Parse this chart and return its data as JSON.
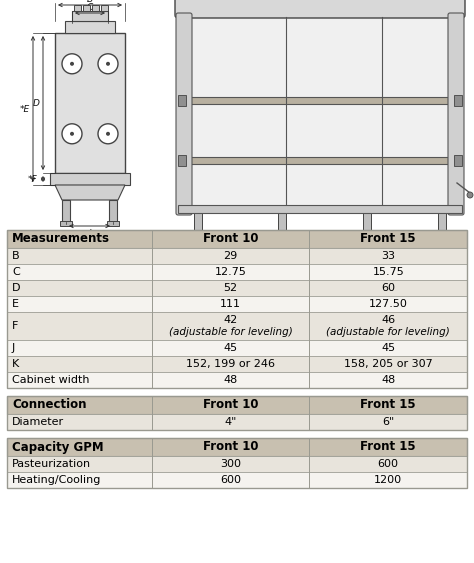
{
  "table1_header": [
    "Measurements",
    "Front 10",
    "Front 15"
  ],
  "table1_rows": [
    [
      "B",
      "29",
      "33"
    ],
    [
      "C",
      "12.75",
      "15.75"
    ],
    [
      "D",
      "52",
      "60"
    ],
    [
      "E",
      "111",
      "127.50"
    ],
    [
      "F",
      "42\n(adjustable for leveling)",
      "46\n(adjustable for leveling)"
    ],
    [
      "J",
      "45",
      "45"
    ],
    [
      "K",
      "152, 199 or 246",
      "158, 205 or 307"
    ],
    [
      "Cabinet width",
      "48",
      "48"
    ]
  ],
  "table2_header": [
    "Connection",
    "Front 10",
    "Front 15"
  ],
  "table2_rows": [
    [
      "Diameter",
      "4\"",
      "6\""
    ]
  ],
  "table3_header": [
    "Capacity GPM",
    "Front 10",
    "Front 15"
  ],
  "table3_rows": [
    [
      "Pasteurization",
      "300",
      "600"
    ],
    [
      "Heating/Cooling",
      "600",
      "1200"
    ]
  ],
  "header_bg": "#c8c0b0",
  "row_bg_even": "#e8e4dc",
  "row_bg_odd": "#f5f3ef",
  "border_color": "#999990",
  "text_color": "#000000",
  "header_fontsize": 8.5,
  "row_fontsize": 8,
  "fig_bg": "#ffffff",
  "diag_bg": "#ffffff"
}
